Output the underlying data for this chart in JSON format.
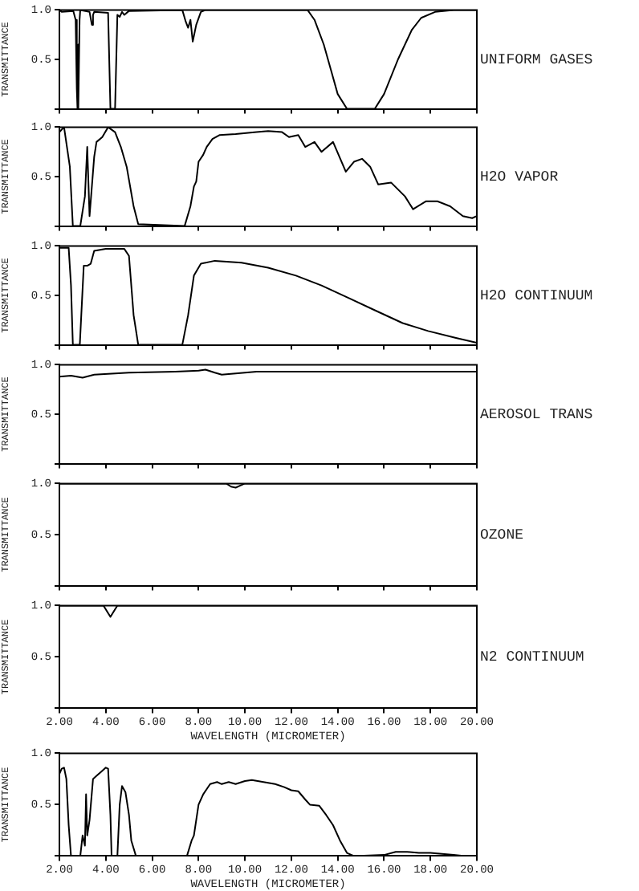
{
  "chart_data": [
    {
      "type": "line",
      "title": "UNIFORM GASES",
      "ylabel": "TRANSMITTANCE",
      "color": "#000000",
      "marker": "none",
      "grid": false,
      "tick_labels": "y",
      "x": [
        2.0,
        2.1,
        2.6,
        2.7,
        2.75,
        2.78,
        2.8,
        2.83,
        2.87,
        2.9,
        3.3,
        3.4,
        3.45,
        3.5,
        4.1,
        4.2,
        4.4,
        4.5,
        4.6,
        4.7,
        4.8,
        5.0,
        7.3,
        7.45,
        7.55,
        7.65,
        7.75,
        7.9,
        8.1,
        8.3,
        12.7,
        13.0,
        13.4,
        13.7,
        14.0,
        14.4,
        15.6,
        16.0,
        16.6,
        17.2,
        17.6,
        18.2,
        19.0,
        20.0
      ],
      "values": [
        1.0,
        0.98,
        0.99,
        0.9,
        0.2,
        0.0,
        0.65,
        0.0,
        0.9,
        1.0,
        0.98,
        0.85,
        0.95,
        0.98,
        0.97,
        0.0,
        0.0,
        0.95,
        0.93,
        0.98,
        0.95,
        0.99,
        1.0,
        0.88,
        0.82,
        0.9,
        0.68,
        0.85,
        0.98,
        1.0,
        1.0,
        0.9,
        0.65,
        0.4,
        0.15,
        0.0,
        0.0,
        0.15,
        0.5,
        0.8,
        0.92,
        0.98,
        1.0,
        1.0
      ],
      "xlim": [
        2,
        20
      ],
      "xticks": [
        {
          "value": 2,
          "label": null
        },
        {
          "value": 4,
          "label": null
        },
        {
          "value": 6,
          "label": null
        },
        {
          "value": 8,
          "label": null
        },
        {
          "value": 10,
          "label": null
        },
        {
          "value": 12,
          "label": null
        },
        {
          "value": 14,
          "label": null
        },
        {
          "value": 16,
          "label": null
        },
        {
          "value": 18,
          "label": null
        },
        {
          "value": 20,
          "label": null
        }
      ],
      "ylim": [
        0,
        1
      ],
      "yticks": [
        {
          "value": 0,
          "label": null
        },
        {
          "value": 0.5,
          "label": "0.5"
        },
        {
          "value": 1,
          "label": "1.0"
        }
      ]
    },
    {
      "type": "line",
      "title": "H2O VAPOR",
      "ylabel": "TRANSMITTANCE",
      "color": "#000000",
      "marker": "none",
      "grid": false,
      "tick_labels": "y",
      "x": [
        2.0,
        2.2,
        2.45,
        2.58,
        2.9,
        3.1,
        3.2,
        3.3,
        3.5,
        3.6,
        3.85,
        4.1,
        4.4,
        4.65,
        4.9,
        5.2,
        5.4,
        7.4,
        7.65,
        7.8,
        7.9,
        8.0,
        8.2,
        8.35,
        8.6,
        8.9,
        9.6,
        10.5,
        11.0,
        11.6,
        11.9,
        12.3,
        12.6,
        13.0,
        13.3,
        13.8,
        14.35,
        14.7,
        15.05,
        15.4,
        15.75,
        16.3,
        16.9,
        17.25,
        17.8,
        18.3,
        18.85,
        19.4,
        19.8,
        20.0
      ],
      "values": [
        0.95,
        1.0,
        0.6,
        0.0,
        0.0,
        0.3,
        0.8,
        0.1,
        0.7,
        0.85,
        0.9,
        1.0,
        0.95,
        0.8,
        0.6,
        0.2,
        0.02,
        0.0,
        0.2,
        0.4,
        0.45,
        0.65,
        0.72,
        0.8,
        0.88,
        0.92,
        0.93,
        0.95,
        0.96,
        0.95,
        0.9,
        0.92,
        0.8,
        0.85,
        0.75,
        0.85,
        0.55,
        0.65,
        0.68,
        0.6,
        0.42,
        0.44,
        0.3,
        0.17,
        0.25,
        0.25,
        0.2,
        0.1,
        0.08,
        0.1
      ],
      "xlim": [
        2,
        20
      ],
      "xticks": [
        {
          "value": 2,
          "label": null
        },
        {
          "value": 4,
          "label": null
        },
        {
          "value": 6,
          "label": null
        },
        {
          "value": 8,
          "label": null
        },
        {
          "value": 10,
          "label": null
        },
        {
          "value": 12,
          "label": null
        },
        {
          "value": 14,
          "label": null
        },
        {
          "value": 16,
          "label": null
        },
        {
          "value": 18,
          "label": null
        },
        {
          "value": 20,
          "label": null
        }
      ],
      "ylim": [
        0,
        1
      ],
      "yticks": [
        {
          "value": 0,
          "label": null
        },
        {
          "value": 0.5,
          "label": "0.5"
        },
        {
          "value": 1,
          "label": "1.0"
        }
      ]
    },
    {
      "type": "line",
      "title": "H2O CONTINUUM",
      "ylabel": "TRANSMITTANCE",
      "color": "#000000",
      "marker": "none",
      "grid": false,
      "tick_labels": "y",
      "x": [
        2.0,
        2.4,
        2.5,
        2.58,
        2.88,
        3.05,
        3.2,
        3.35,
        3.5,
        4.0,
        4.8,
        5.0,
        5.2,
        5.4,
        7.3,
        7.55,
        7.8,
        8.1,
        8.7,
        9.85,
        11.0,
        12.2,
        13.3,
        14.5,
        15.6,
        16.8,
        17.9,
        19.1,
        20.0
      ],
      "values": [
        0.98,
        0.98,
        0.6,
        0.0,
        0.0,
        0.8,
        0.8,
        0.82,
        0.95,
        0.97,
        0.97,
        0.9,
        0.3,
        0.0,
        0.0,
        0.3,
        0.7,
        0.82,
        0.85,
        0.83,
        0.78,
        0.7,
        0.6,
        0.47,
        0.35,
        0.22,
        0.14,
        0.07,
        0.02
      ],
      "xlim": [
        2,
        20
      ],
      "xticks": [
        {
          "value": 2,
          "label": null
        },
        {
          "value": 4,
          "label": null
        },
        {
          "value": 6,
          "label": null
        },
        {
          "value": 8,
          "label": null
        },
        {
          "value": 10,
          "label": null
        },
        {
          "value": 12,
          "label": null
        },
        {
          "value": 14,
          "label": null
        },
        {
          "value": 16,
          "label": null
        },
        {
          "value": 18,
          "label": null
        },
        {
          "value": 20,
          "label": null
        }
      ],
      "ylim": [
        0,
        1
      ],
      "yticks": [
        {
          "value": 0,
          "label": null
        },
        {
          "value": 0.5,
          "label": "0.5"
        },
        {
          "value": 1,
          "label": "1.0"
        }
      ]
    },
    {
      "type": "line",
      "title": "AEROSOL TRANS",
      "ylabel": "TRANSMITTANCE",
      "color": "#000000",
      "marker": "none",
      "grid": false,
      "tick_labels": "y",
      "x": [
        2.0,
        2.5,
        3.0,
        3.5,
        5.0,
        7.0,
        8.0,
        8.3,
        8.7,
        9.0,
        9.5,
        10.5,
        12.0,
        20.0
      ],
      "values": [
        0.88,
        0.89,
        0.87,
        0.9,
        0.92,
        0.93,
        0.94,
        0.95,
        0.92,
        0.9,
        0.91,
        0.93,
        0.93,
        0.93
      ],
      "xlim": [
        2,
        20
      ],
      "xticks": [
        {
          "value": 2,
          "label": null
        },
        {
          "value": 4,
          "label": null
        },
        {
          "value": 6,
          "label": null
        },
        {
          "value": 8,
          "label": null
        },
        {
          "value": 10,
          "label": null
        },
        {
          "value": 12,
          "label": null
        },
        {
          "value": 14,
          "label": null
        },
        {
          "value": 16,
          "label": null
        },
        {
          "value": 18,
          "label": null
        },
        {
          "value": 20,
          "label": null
        }
      ],
      "ylim": [
        0,
        1
      ],
      "yticks": [
        {
          "value": 0,
          "label": null
        },
        {
          "value": 0.5,
          "label": "0.5"
        },
        {
          "value": 1,
          "label": "1.0"
        }
      ]
    },
    {
      "type": "line",
      "title": "OZONE",
      "ylabel": "TRANSMITTANCE",
      "color": "#000000",
      "marker": "none",
      "grid": false,
      "tick_labels": "y",
      "x": [
        2.0,
        9.2,
        9.4,
        9.6,
        9.8,
        10.0,
        20.0
      ],
      "values": [
        1.0,
        1.0,
        0.97,
        0.96,
        0.98,
        1.0,
        1.0
      ],
      "xlim": [
        2,
        20
      ],
      "xticks": [
        {
          "value": 2,
          "label": null
        },
        {
          "value": 4,
          "label": null
        },
        {
          "value": 6,
          "label": null
        },
        {
          "value": 8,
          "label": null
        },
        {
          "value": 10,
          "label": null
        },
        {
          "value": 12,
          "label": null
        },
        {
          "value": 14,
          "label": null
        },
        {
          "value": 16,
          "label": null
        },
        {
          "value": 18,
          "label": null
        },
        {
          "value": 20,
          "label": null
        }
      ],
      "ylim": [
        0,
        1
      ],
      "yticks": [
        {
          "value": 0,
          "label": null
        },
        {
          "value": 0.5,
          "label": "0.5"
        },
        {
          "value": 1,
          "label": "1.0"
        }
      ]
    },
    {
      "type": "line",
      "title": "N2 CONTINUUM",
      "xlabel": "WAVELENGTH (MICROMETER)",
      "ylabel": "TRANSMITTANCE",
      "color": "#000000",
      "marker": "none",
      "grid": false,
      "x": [
        2.0,
        3.9,
        4.2,
        4.5,
        20.0
      ],
      "values": [
        1.0,
        1.0,
        0.89,
        1.0,
        1.0
      ],
      "xlim": [
        2,
        20
      ],
      "xticks": [
        {
          "value": 2,
          "label": "2.00"
        },
        {
          "value": 4,
          "label": "4.00"
        },
        {
          "value": 6,
          "label": "6.00"
        },
        {
          "value": 8,
          "label": "8.00"
        },
        {
          "value": 10,
          "label": "10.00"
        },
        {
          "value": 12,
          "label": "12.00"
        },
        {
          "value": 14,
          "label": "14.00"
        },
        {
          "value": 16,
          "label": "16.00"
        },
        {
          "value": 18,
          "label": "18.00"
        },
        {
          "value": 20,
          "label": "20.00"
        }
      ],
      "ylim": [
        0,
        1
      ],
      "yticks": [
        {
          "value": 0,
          "label": null
        },
        {
          "value": 0.5,
          "label": "0.5"
        },
        {
          "value": 1,
          "label": "1.0"
        }
      ]
    },
    {
      "type": "line",
      "xlabel": "WAVELENGTH (MICROMETER)",
      "ylabel": "TRANSMITTANCE",
      "color": "#000000",
      "marker": "none",
      "grid": false,
      "x": [
        2.0,
        2.1,
        2.2,
        2.3,
        2.4,
        2.5,
        2.9,
        3.0,
        3.1,
        3.15,
        3.2,
        3.3,
        3.45,
        3.6,
        3.8,
        4.0,
        4.1,
        4.2,
        4.25,
        4.5,
        4.6,
        4.7,
        4.85,
        5.0,
        5.1,
        5.3,
        7.5,
        7.7,
        7.8,
        8.0,
        8.2,
        8.5,
        8.8,
        9.0,
        9.3,
        9.6,
        10.0,
        10.3,
        10.8,
        11.3,
        11.7,
        12.0,
        12.3,
        12.6,
        12.8,
        13.2,
        13.5,
        13.8,
        14.1,
        14.4,
        14.7,
        16.0,
        16.5,
        17.0,
        17.5,
        18.0,
        18.5,
        19.0,
        19.5,
        20.0
      ],
      "values": [
        0.8,
        0.85,
        0.86,
        0.75,
        0.3,
        0.0,
        0.0,
        0.2,
        0.1,
        0.6,
        0.2,
        0.35,
        0.75,
        0.78,
        0.82,
        0.86,
        0.85,
        0.4,
        0.0,
        0.0,
        0.5,
        0.68,
        0.62,
        0.4,
        0.15,
        0.0,
        0.0,
        0.15,
        0.2,
        0.5,
        0.6,
        0.7,
        0.72,
        0.7,
        0.72,
        0.7,
        0.73,
        0.74,
        0.72,
        0.7,
        0.67,
        0.64,
        0.63,
        0.55,
        0.5,
        0.49,
        0.4,
        0.3,
        0.15,
        0.03,
        0.0,
        0.01,
        0.04,
        0.04,
        0.03,
        0.03,
        0.02,
        0.01,
        0.0,
        0.0
      ],
      "xlim": [
        2,
        20
      ],
      "xticks": [
        {
          "value": 2,
          "label": "2.00"
        },
        {
          "value": 4,
          "label": "4.00"
        },
        {
          "value": 6,
          "label": "6.00"
        },
        {
          "value": 8,
          "label": "8.00"
        },
        {
          "value": 10,
          "label": "10.00"
        },
        {
          "value": 12,
          "label": "12.00"
        },
        {
          "value": 14,
          "label": "14.00"
        },
        {
          "value": 16,
          "label": "16.00"
        },
        {
          "value": 18,
          "label": "18.00"
        },
        {
          "value": 20,
          "label": "20.00"
        }
      ],
      "ylim": [
        0,
        1
      ],
      "yticks": [
        {
          "value": 0,
          "label": null
        },
        {
          "value": 0.5,
          "label": "0.5"
        },
        {
          "value": 1,
          "label": "1.0"
        }
      ]
    }
  ]
}
